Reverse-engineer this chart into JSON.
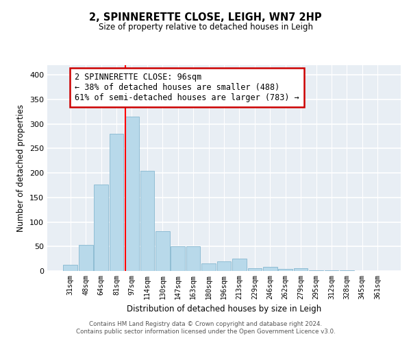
{
  "title": "2, SPINNERETTE CLOSE, LEIGH, WN7 2HP",
  "subtitle": "Size of property relative to detached houses in Leigh",
  "xlabel": "Distribution of detached houses by size in Leigh",
  "ylabel": "Number of detached properties",
  "bar_color": "#b8d9ea",
  "bar_edgecolor": "#90bdd4",
  "vline_color": "red",
  "annotation_title": "2 SPINNERETTE CLOSE: 96sqm",
  "annotation_line1": "← 38% of detached houses are smaller (488)",
  "annotation_line2": "61% of semi-detached houses are larger (783) →",
  "annotation_box_color": "white",
  "annotation_box_edgecolor": "#cc0000",
  "categories": [
    "31sqm",
    "48sqm",
    "64sqm",
    "81sqm",
    "97sqm",
    "114sqm",
    "130sqm",
    "147sqm",
    "163sqm",
    "180sqm",
    "196sqm",
    "213sqm",
    "229sqm",
    "246sqm",
    "262sqm",
    "279sqm",
    "295sqm",
    "312sqm",
    "328sqm",
    "345sqm",
    "361sqm"
  ],
  "values": [
    13,
    53,
    177,
    280,
    315,
    204,
    81,
    51,
    50,
    16,
    20,
    25,
    5,
    9,
    4,
    5,
    2,
    1,
    1,
    0,
    0
  ],
  "ylim": [
    0,
    420
  ],
  "yticks": [
    0,
    50,
    100,
    150,
    200,
    250,
    300,
    350,
    400
  ],
  "background_color": "#e8eef4",
  "footer_line1": "Contains HM Land Registry data © Crown copyright and database right 2024.",
  "footer_line2": "Contains public sector information licensed under the Open Government Licence v3.0."
}
